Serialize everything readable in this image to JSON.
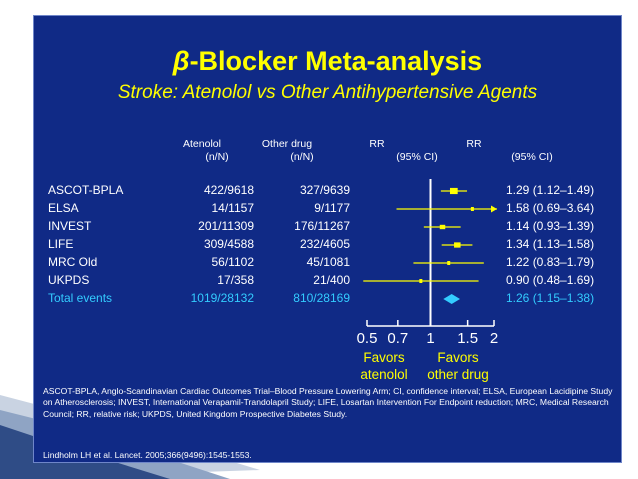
{
  "title_symbol": "β",
  "title_rest": "-Blocker Meta-analysis",
  "subtitle": "Stroke: Atenolol vs Other Antihypertensive Agents",
  "headers": {
    "atenolol": "Atenolol",
    "atenolol_sub": "(n/N)",
    "other": "Other drug",
    "other_sub": "(n/N)",
    "rr1": "RR",
    "rr1_sub": "(95% CI)",
    "rr2": "RR",
    "rr2_sub": "(95% CI)"
  },
  "rows": [
    {
      "study": "ASCOT-BPLA",
      "atenolol": "422/9618",
      "other": "327/9639",
      "ci_text": "1.29 (1.12–1.49)"
    },
    {
      "study": "ELSA",
      "atenolol": "14/1157",
      "other": "9/1177",
      "ci_text": "1.58 (0.69–3.64)"
    },
    {
      "study": "INVEST",
      "atenolol": "201/11309",
      "other": "176/11267",
      "ci_text": "1.14 (0.93–1.39)"
    },
    {
      "study": "LIFE",
      "atenolol": "309/4588",
      "other": "232/4605",
      "ci_text": "1.34 (1.13–1.58)"
    },
    {
      "study": "MRC Old",
      "atenolol": "56/1102",
      "other": "45/1081",
      "ci_text": "1.22 (0.83–1.79)"
    },
    {
      "study": "UKPDS",
      "atenolol": "17/358",
      "other": "21/400",
      "ci_text": "0.90 (0.48–1.69)"
    }
  ],
  "total": {
    "study": "Total events",
    "atenolol": "1019/28132",
    "other": "810/28169",
    "ci_text": "1.26 (1.15–1.38)"
  },
  "favors": {
    "left_1": "Favors",
    "left_2": "atenolol",
    "right_1": "Favors",
    "right_2": "other drug"
  },
  "footnote": "ASCOT-BPLA, Anglo-Scandinavian Cardiac Outcomes Trial–Blood Pressure Lowering Arm; CI, confidence interval; ELSA, European Lacidipine Study on Atherosclerosis; INVEST, International Verapamil-Trandolapril Study; LIFE, Losartan Intervention For Endpoint reduction; MRC, Medical Research Council; RR, relative risk; UKPDS, United Kingdom Prospective Diabetes Study.",
  "citation": "Lindholm LH et al. Lancet. 2005;366(9496):1545-1553.",
  "colors": {
    "background": "#102a86",
    "accent": "#ffff00",
    "total": "#33ccff",
    "text": "#ffffff"
  },
  "chart_data": {
    "type": "forest",
    "x_scale": "log",
    "xlim": [
      0.5,
      2
    ],
    "ticks": [
      "0.5",
      "0.7",
      "1",
      "1.5",
      "2"
    ],
    "reference_line": 1,
    "studies": [
      {
        "name": "ASCOT-BPLA",
        "rr": 1.29,
        "lo": 1.12,
        "hi": 1.49
      },
      {
        "name": "ELSA",
        "rr": 1.58,
        "lo": 0.69,
        "hi": 3.64
      },
      {
        "name": "INVEST",
        "rr": 1.14,
        "lo": 0.93,
        "hi": 1.39
      },
      {
        "name": "LIFE",
        "rr": 1.34,
        "lo": 1.13,
        "hi": 1.58
      },
      {
        "name": "MRC Old",
        "rr": 1.22,
        "lo": 0.83,
        "hi": 1.79
      },
      {
        "name": "UKPDS",
        "rr": 0.9,
        "lo": 0.48,
        "hi": 1.69
      }
    ],
    "pooled": {
      "name": "Total events",
      "rr": 1.26,
      "lo": 1.15,
      "hi": 1.38
    }
  }
}
